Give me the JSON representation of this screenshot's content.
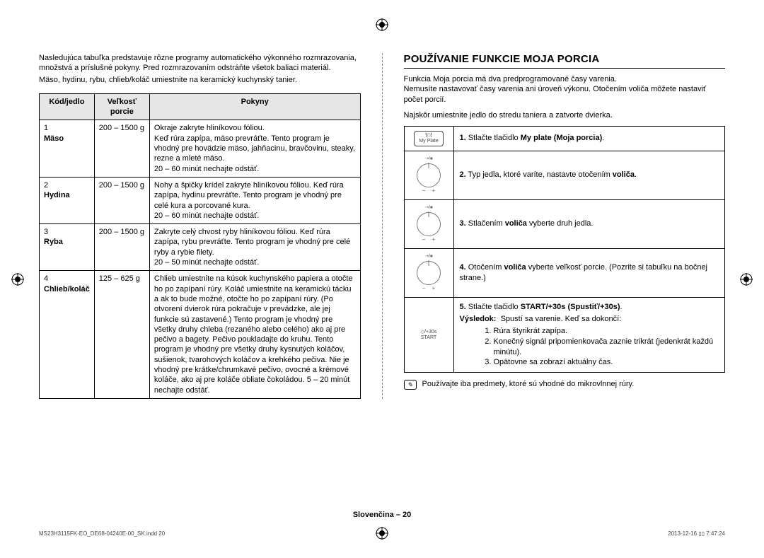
{
  "leftIntro": {
    "p1": "Nasledujúca tabuľka predstavuje rôzne programy automatického výkonného rozmrazovania, množstvá a príslušné pokyny. Pred rozmrazovaním odstráňte všetok baliaci materiál.",
    "p2": "Mäso, hydinu, rybu, chlieb/koláč umiestnite na keramický kuchynský tanier."
  },
  "tableHeaders": {
    "code": "Kód/jedlo",
    "size": "Veľkosť porcie",
    "instr": "Pokyny"
  },
  "rows": [
    {
      "num": "1",
      "name": "Mäso",
      "size": "200 – 1500 g",
      "instr": "Okraje zakryte hliníkovou fóliou.\nKeď rúra zapípa, mäso prevráťte. Tento program je vhodný pre hovädzie mäso, jahňacinu, bravčovinu, steaky, rezne a mleté mäso.\n20 – 60 minút nechajte odstáť."
    },
    {
      "num": "2",
      "name": "Hydina",
      "size": "200 – 1500 g",
      "instr": "Nohy a špičky krídel zakryte hliníkovou fóliou. Keď rúra zapípa, hydinu prevráťte. Tento program je vhodný pre celé kura a porcované kura.\n20 – 60 minút nechajte odstáť."
    },
    {
      "num": "3",
      "name": "Ryba",
      "size": "200 – 1500 g",
      "instr": "Zakryte celý chvost ryby hliníkovou fóliou. Keď rúra zapípa, rybu prevráťte. Tento program je vhodný pre celé ryby a rybie filety.\n20 – 50 minút nechajte odstáť."
    },
    {
      "num": "4",
      "name": "Chlieb/koláč",
      "size": "125 – 625 g",
      "instr": "Chlieb umiestnite na kúsok kuchynského papiera a otočte ho po zapípaní rúry. Koláč umiestnite na keramickú tácku a ak to bude možné, otočte ho po zapípaní rúry. (Po otvorení dvierok rúra pokračuje v prevádzke, ale jej funkcie sú zastavené.) Tento program je vhodný pre všetky druhy chleba (rezaného alebo celého) ako aj pre pečivo a bagety. Pečivo poukladajte do kruhu. Tento program je vhodný pre všetky druhy kysnutých koláčov, sušienok, tvarohových koláčov a krehkého pečiva. Nie je vhodný pre krátke/chrumkavé pečivo, ovocné a krémové koláče, ako aj pre koláče obliate čokoládou. 5 – 20 minút nechajte odstáť."
    }
  ],
  "right": {
    "title": "POUŽÍVANIE FUNKCIE MOJA PORCIA",
    "p1": "Funkcia Moja porcia má dva predprogramované časy varenia.",
    "p2": "Nemusíte nastavovať časy varenia ani úroveň výkonu. Otočením voliča môžete nastaviť počet porcií.",
    "p3": "Najskôr umiestnite jedlo do stredu taniera a zatvorte dvierka.",
    "steps": [
      {
        "icon": "myplate",
        "num": "1.",
        "text": "Stlačte tlačidlo ",
        "bold": "My plate (Moja porcia)",
        "tail": "."
      },
      {
        "icon": "dial",
        "num": "2.",
        "text": "Typ jedla, ktoré varíte, nastavte otočením ",
        "bold": "voliča",
        "tail": "."
      },
      {
        "icon": "dial",
        "num": "3.",
        "text": "Stlačením ",
        "bold": "voliča",
        "tail": " vyberte druh jedla."
      },
      {
        "icon": "dial",
        "num": "4.",
        "text": "Otočením ",
        "bold": "voliča",
        "tail": " vyberte veľkosť porcie. (Pozrite si tabuľku na bočnej strane.)"
      },
      {
        "icon": "start",
        "num": "5.",
        "text": "Stlačte tlačidlo ",
        "bold": "START/+30s (Spustiť/+30s)",
        "tail": "."
      }
    ],
    "resultLabel": "Výsledok:",
    "resultLead": "Spustí sa varenie. Keď sa dokončí:",
    "resultList": [
      "Rúra štyrikrát zapípa.",
      "Konečný signál pripomienkovača zaznie trikrát (jedenkrát každú minútu).",
      "Opätovne sa zobrazí aktuálny čas."
    ],
    "note": "Používajte iba predmety, ktoré sú vhodné do mikrovlnnej rúry."
  },
  "iconLabels": {
    "myplate": "My Plate",
    "start30": "/+30s",
    "start": "START",
    "dialTop": "⇢/⏹"
  },
  "footer": "Slovenčina – 20",
  "meta": {
    "left": "MS23H3115FK-EO_DE68-04240E-00_SK.indd   20",
    "right": "2013-12-16   ▯▯ 7:47:24"
  }
}
